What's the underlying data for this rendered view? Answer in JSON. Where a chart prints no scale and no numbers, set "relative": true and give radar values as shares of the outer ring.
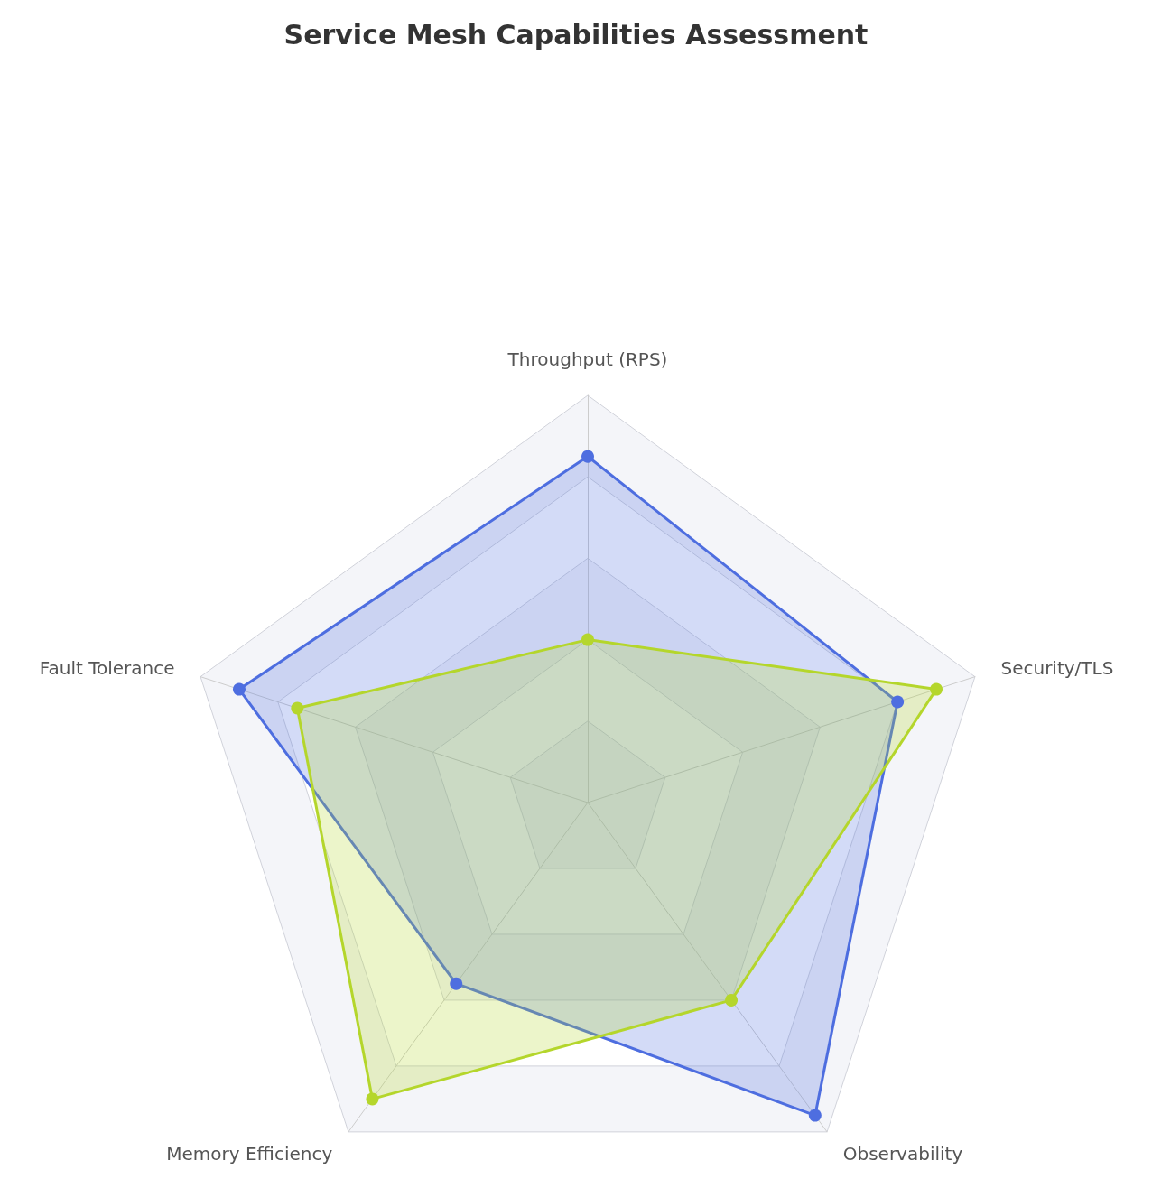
{
  "chart_data": {
    "type": "radar",
    "title": "Service Mesh Capabilities Assessment",
    "categories": [
      "Throughput (RPS)",
      "Security/TLS",
      "Observability",
      "Memory Efficiency",
      "Fault Tolerance"
    ],
    "relative": true,
    "grid": true,
    "marker": "circle",
    "series": [
      {
        "color": "#4e6ee0",
        "values": [
          0.85,
          0.8,
          0.95,
          0.55,
          0.9
        ]
      },
      {
        "color": "#b5d62c",
        "values": [
          0.4,
          0.9,
          0.6,
          0.9,
          0.75
        ]
      }
    ]
  }
}
